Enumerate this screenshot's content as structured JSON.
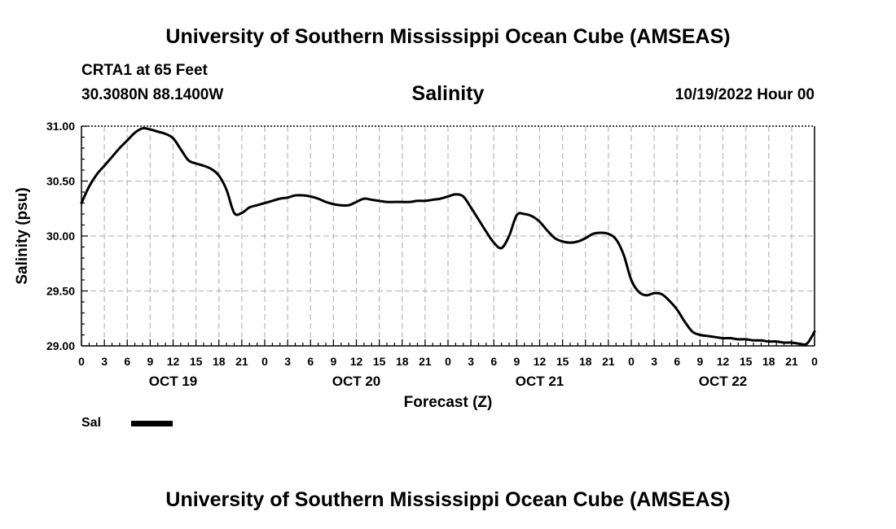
{
  "header": {
    "title": "University of Southern Mississippi Ocean Cube (AMSEAS)",
    "station": "CRTA1 at 65 Feet",
    "coords": "30.3080N  88.1400W",
    "variable": "Salinity",
    "datetime": "10/19/2022 Hour 00"
  },
  "footer": {
    "title": "University of Southern Mississippi Ocean Cube (AMSEAS)"
  },
  "legend": {
    "label": "Sal",
    "color": "#000000"
  },
  "chart_data": {
    "type": "line",
    "title": "Salinity",
    "xlabel": "Forecast (Z)",
    "ylabel": "Salinity (psu)",
    "xlim": [
      0,
      96
    ],
    "ylim": [
      29.0,
      31.0
    ],
    "grid": true,
    "y_ticks": [
      "29.00",
      "29.50",
      "30.00",
      "30.50",
      "31.00"
    ],
    "x_tick_labels": [
      "0",
      "3",
      "6",
      "9",
      "12",
      "15",
      "18",
      "21",
      "0",
      "3",
      "6",
      "9",
      "12",
      "15",
      "18",
      "21",
      "0",
      "3",
      "6",
      "9",
      "12",
      "15",
      "18",
      "21",
      "0",
      "3",
      "6",
      "9",
      "12",
      "15",
      "18",
      "21",
      "0"
    ],
    "day_labels": [
      {
        "label": "OCT 19",
        "hour": 12
      },
      {
        "label": "OCT 20",
        "hour": 36
      },
      {
        "label": "OCT 21",
        "hour": 60
      },
      {
        "label": "OCT 22",
        "hour": 84
      }
    ],
    "series": [
      {
        "name": "Sal",
        "x": [
          0,
          1,
          2,
          3,
          4,
          5,
          6,
          7,
          8,
          9,
          10,
          11,
          12,
          13,
          14,
          15,
          16,
          17,
          18,
          19,
          20,
          21,
          22,
          23,
          24,
          25,
          26,
          27,
          28,
          29,
          30,
          31,
          32,
          33,
          34,
          35,
          36,
          37,
          38,
          39,
          40,
          41,
          42,
          43,
          44,
          45,
          46,
          47,
          48,
          49,
          50,
          51,
          52,
          53,
          54,
          55,
          56,
          57,
          58,
          59,
          60,
          61,
          62,
          63,
          64,
          65,
          66,
          67,
          68,
          69,
          70,
          71,
          72,
          73,
          74,
          75,
          76,
          77,
          78,
          79,
          80,
          81,
          82,
          83,
          84,
          85,
          86,
          87,
          88,
          89,
          90,
          91,
          92,
          93,
          94,
          95,
          96
        ],
        "values": [
          30.3,
          30.45,
          30.56,
          30.64,
          30.72,
          30.8,
          30.87,
          30.94,
          30.98,
          30.97,
          30.95,
          30.93,
          30.89,
          30.79,
          30.69,
          30.66,
          30.64,
          30.61,
          30.55,
          30.42,
          30.21,
          30.21,
          30.26,
          30.28,
          30.3,
          30.32,
          30.34,
          30.35,
          30.37,
          30.37,
          30.36,
          30.34,
          30.31,
          30.29,
          30.28,
          30.28,
          30.31,
          30.34,
          30.33,
          30.32,
          30.31,
          30.31,
          30.31,
          30.31,
          30.32,
          30.32,
          30.33,
          30.34,
          30.36,
          30.38,
          30.36,
          30.26,
          30.15,
          30.04,
          29.94,
          29.89,
          30.0,
          30.19,
          30.2,
          30.18,
          30.13,
          30.05,
          29.98,
          29.95,
          29.94,
          29.95,
          29.98,
          30.02,
          30.03,
          30.02,
          29.97,
          29.83,
          29.6,
          29.49,
          29.46,
          29.48,
          29.47,
          29.41,
          29.33,
          29.22,
          29.13,
          29.1,
          29.09,
          29.08,
          29.07,
          29.07,
          29.06,
          29.06,
          29.05,
          29.05,
          29.04,
          29.04,
          29.03,
          29.03,
          29.02,
          29.02,
          29.13
        ]
      }
    ]
  }
}
